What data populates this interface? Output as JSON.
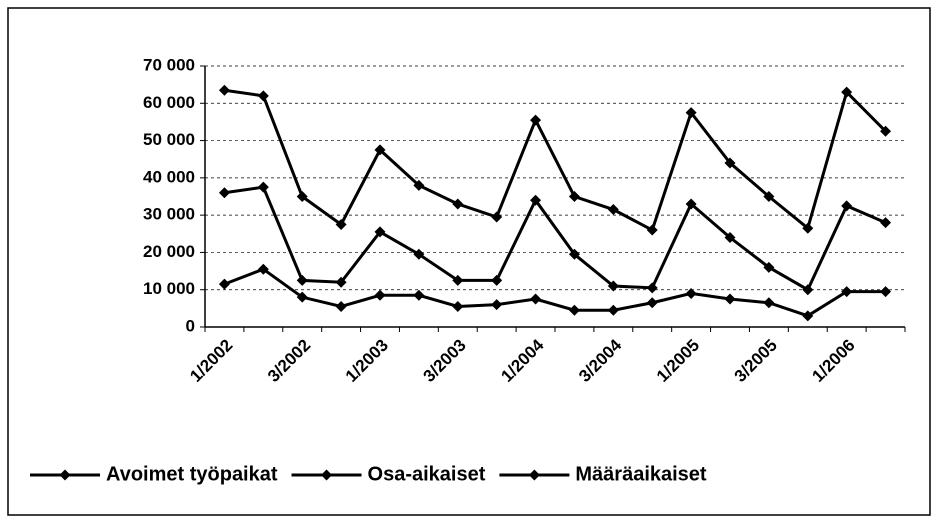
{
  "chart_data": {
    "type": "line",
    "categories": [
      "1/2002",
      null,
      "3/2002",
      null,
      "1/2003",
      null,
      "3/2003",
      null,
      "1/2004",
      null,
      "3/2004",
      null,
      "1/2005",
      null,
      "3/2005",
      null,
      "1/2006",
      null
    ],
    "series": [
      {
        "name": "Avoimet työpaikat",
        "color": "#000000",
        "values": [
          63500,
          62000,
          35000,
          27500,
          47500,
          38000,
          33000,
          29500,
          55500,
          35000,
          31500,
          26000,
          57500,
          44000,
          35000,
          26500,
          63000,
          52500
        ]
      },
      {
        "name": "Osa-aikaiset",
        "color": "#000000",
        "values": [
          11500,
          15500,
          8000,
          5500,
          8500,
          8500,
          5500,
          6000,
          7500,
          4500,
          4500,
          6500,
          9000,
          7500,
          6500,
          3000,
          9500,
          9500
        ]
      },
      {
        "name": "Määräaikaiset",
        "color": "#000000",
        "values": [
          36000,
          37500,
          12500,
          12000,
          25500,
          19500,
          12500,
          12500,
          34000,
          19500,
          11000,
          10500,
          33000,
          24000,
          16000,
          10000,
          32500,
          28000
        ]
      }
    ],
    "ylim": [
      0,
      70000
    ],
    "yticks": [
      0,
      {
        "value": 10000,
        "label": "10 000"
      },
      {
        "value": 20000,
        "label": "20 000"
      },
      {
        "value": 30000,
        "label": "30 000"
      },
      {
        "value": 40000,
        "label": "40 000"
      },
      {
        "value": 50000,
        "label": "50 000"
      },
      {
        "value": 60000,
        "label": "60 000"
      },
      {
        "value": 70000,
        "label": "70 000"
      }
    ],
    "grid": true,
    "legend": "bottom"
  }
}
